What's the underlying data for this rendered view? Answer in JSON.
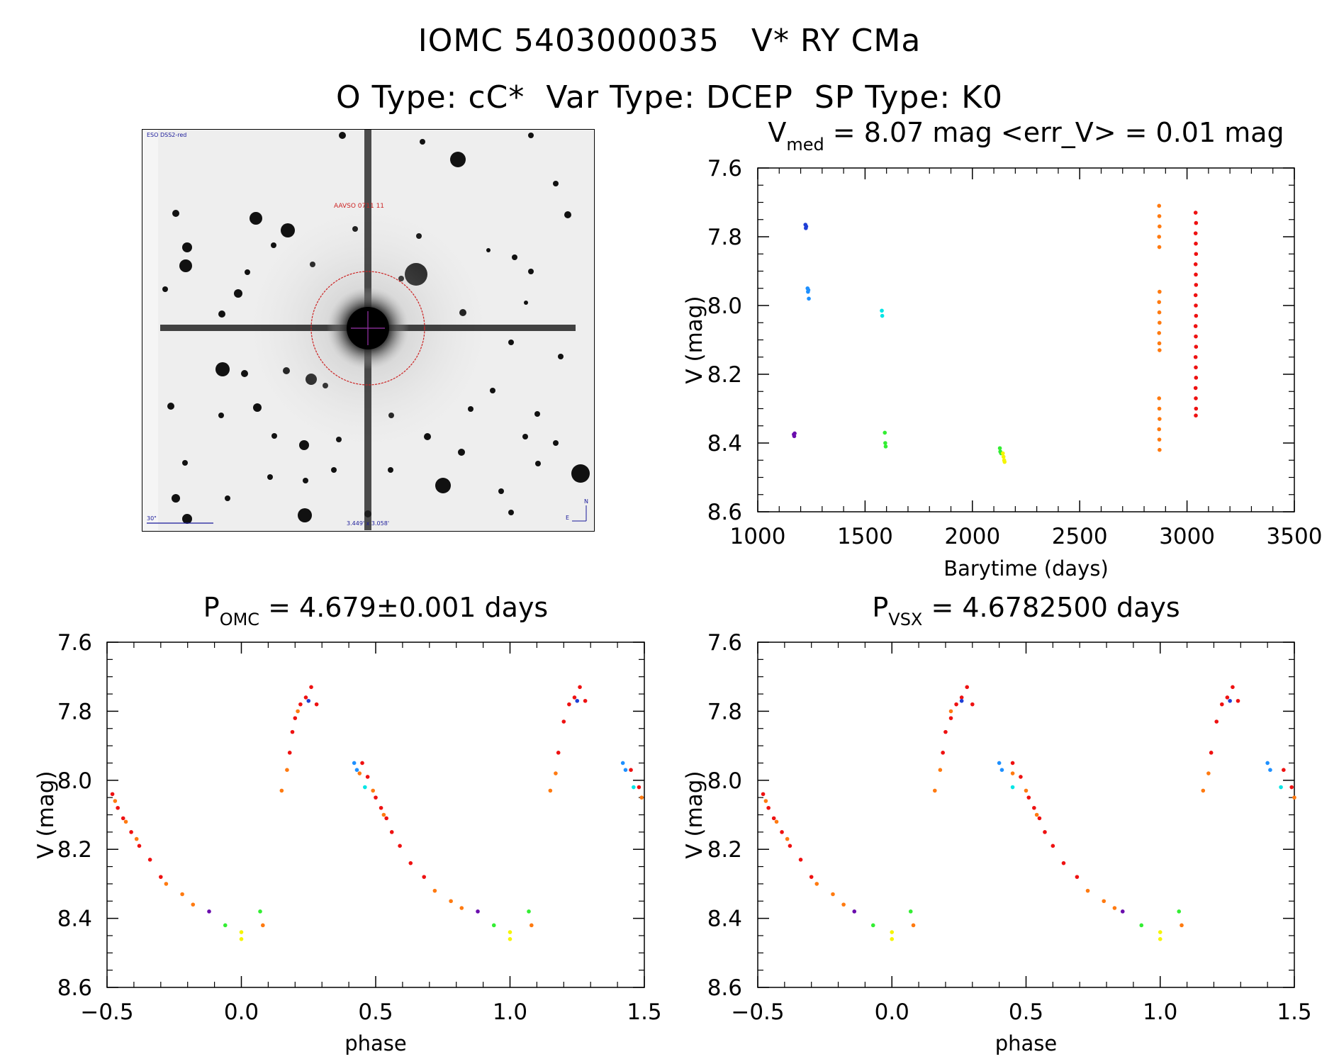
{
  "header": {
    "line1_left": "IOMC 5403000035",
    "line1_right": "V* RY CMa",
    "line2": {
      "o_type": "O Type: cC*",
      "var_type": "Var Type: DCEP",
      "sp_type": "SP Type: K0"
    }
  },
  "finder_chart": {
    "survey_label": "ESO DSS2-red",
    "target_label": "AAVSO 0711  11",
    "scale_label": "30\"",
    "field_label": "3.449' x 3.058'",
    "north_label": "N",
    "east_label": "E",
    "colors": {
      "circle": "#cc2222",
      "crosshair": "#9933aa",
      "text_blue": "#1a1a9a",
      "text_red": "#cc2222"
    }
  },
  "palette": {
    "purple": "#6a0dad",
    "blue": "#1f3fd6",
    "sky": "#1e90ff",
    "cyan": "#00e5e5",
    "green": "#33ee33",
    "yellow": "#f5f500",
    "orange": "#ff7a10",
    "red": "#ee1111"
  },
  "chart_data": [
    {
      "id": "lightcurve",
      "type": "scatter",
      "title_main": "V",
      "title_sub": "med",
      "title_rest": "= 8.07 mag <err_V> = 0.01 mag",
      "xlabel": "Barytime (days)",
      "ylabel": "V (mag)",
      "xlim": [
        1000,
        3500
      ],
      "ylim": [
        8.6,
        7.6
      ],
      "y_inverted": true,
      "xticks": [
        1000,
        1500,
        2000,
        2500,
        3000,
        3500
      ],
      "yticks": [
        7.6,
        7.8,
        8.0,
        8.2,
        8.4,
        8.6
      ],
      "ytick_labels": [
        "7.6",
        "7.8",
        "8.0",
        "8.2",
        "8.4",
        "8.6"
      ],
      "grid": false,
      "series": [
        {
          "color": "purple",
          "points": [
            [
              1168,
              8.375
            ],
            [
              1170,
              8.38
            ],
            [
              1172,
              8.372
            ]
          ]
        },
        {
          "color": "blue",
          "points": [
            [
              1222,
              7.765
            ],
            [
              1224,
              7.775
            ],
            [
              1226,
              7.77
            ]
          ]
        },
        {
          "color": "sky",
          "points": [
            [
              1232,
              7.95
            ],
            [
              1234,
              7.96
            ],
            [
              1236,
              7.955
            ],
            [
              1238,
              7.98
            ]
          ]
        },
        {
          "color": "cyan",
          "points": [
            [
              1578,
              8.015
            ],
            [
              1580,
              8.03
            ]
          ]
        },
        {
          "color": "green",
          "points": [
            [
              1592,
              8.37
            ],
            [
              1594,
              8.4
            ],
            [
              1596,
              8.41
            ],
            [
              2128,
              8.415
            ],
            [
              2130,
              8.425
            ],
            [
              2134,
              8.43
            ]
          ]
        },
        {
          "color": "yellow",
          "points": [
            [
              2142,
              8.43
            ],
            [
              2145,
              8.44
            ],
            [
              2148,
              8.45
            ],
            [
              2150,
              8.455
            ]
          ]
        },
        {
          "color": "orange",
          "points": [
            [
              2870,
              7.71
            ],
            [
              2871,
              7.74
            ],
            [
              2872,
              7.77
            ],
            [
              2870,
              7.8
            ],
            [
              2871,
              7.83
            ],
            [
              2872,
              7.96
            ],
            [
              2870,
              7.99
            ],
            [
              2871,
              8.02
            ],
            [
              2872,
              8.05
            ],
            [
              2870,
              8.08
            ],
            [
              2871,
              8.11
            ],
            [
              2872,
              8.13
            ],
            [
              2870,
              8.27
            ],
            [
              2871,
              8.3
            ],
            [
              2872,
              8.33
            ],
            [
              2870,
              8.36
            ],
            [
              2871,
              8.39
            ],
            [
              2872,
              8.42
            ]
          ]
        },
        {
          "color": "red",
          "points": [
            [
              3040,
              7.73
            ],
            [
              3042,
              7.76
            ],
            [
              3040,
              7.79
            ],
            [
              3041,
              7.82
            ],
            [
              3042,
              7.85
            ],
            [
              3040,
              7.88
            ],
            [
              3041,
              7.91
            ],
            [
              3042,
              7.94
            ],
            [
              3040,
              7.97
            ],
            [
              3041,
              8.0
            ],
            [
              3042,
              8.03
            ],
            [
              3040,
              8.06
            ],
            [
              3041,
              8.09
            ],
            [
              3042,
              8.12
            ],
            [
              3040,
              8.15
            ],
            [
              3041,
              8.18
            ],
            [
              3042,
              8.21
            ],
            [
              3040,
              8.24
            ],
            [
              3041,
              8.27
            ],
            [
              3042,
              8.3
            ],
            [
              3041,
              8.32
            ]
          ]
        }
      ]
    },
    {
      "id": "phase_omc",
      "type": "scatter",
      "title_main": "P",
      "title_sub": "OMC",
      "title_rest": "= 4.679±0.001 days",
      "xlabel": "phase",
      "ylabel": "V (mag)",
      "xlim": [
        -0.5,
        1.5
      ],
      "ylim": [
        8.6,
        7.6
      ],
      "y_inverted": true,
      "xticks": [
        -0.5,
        0.0,
        0.5,
        1.0,
        1.5
      ],
      "xtick_labels": [
        "−0.5",
        "0.0",
        "0.5",
        "1.0",
        "1.5"
      ],
      "yticks": [
        7.6,
        7.8,
        8.0,
        8.2,
        8.4,
        8.6
      ],
      "ytick_labels": [
        "7.6",
        "7.8",
        "8.0",
        "8.2",
        "8.4",
        "8.6"
      ],
      "grid": false,
      "series": [
        {
          "color": "red",
          "points": [
            [
              -0.48,
              8.04
            ],
            [
              -0.46,
              8.08
            ],
            [
              -0.44,
              8.11
            ],
            [
              -0.41,
              8.15
            ],
            [
              -0.38,
              8.19
            ],
            [
              -0.34,
              8.23
            ],
            [
              -0.3,
              8.28
            ],
            [
              0.18,
              7.92
            ],
            [
              0.19,
              7.86
            ],
            [
              0.2,
              7.82
            ],
            [
              0.22,
              7.78
            ],
            [
              0.24,
              7.76
            ],
            [
              0.26,
              7.73
            ],
            [
              0.28,
              7.78
            ],
            [
              0.45,
              7.95
            ],
            [
              0.47,
              7.99
            ],
            [
              0.5,
              8.05
            ],
            [
              0.52,
              8.08
            ],
            [
              0.54,
              8.11
            ],
            [
              0.56,
              8.15
            ],
            [
              0.59,
              8.19
            ],
            [
              0.63,
              8.24
            ],
            [
              0.68,
              8.28
            ],
            [
              1.18,
              7.92
            ],
            [
              1.2,
              7.83
            ],
            [
              1.22,
              7.78
            ],
            [
              1.24,
              7.76
            ],
            [
              1.26,
              7.73
            ],
            [
              1.28,
              7.77
            ],
            [
              1.45,
              7.97
            ],
            [
              1.48,
              8.02
            ]
          ]
        },
        {
          "color": "orange",
          "points": [
            [
              -0.47,
              8.06
            ],
            [
              -0.43,
              8.12
            ],
            [
              -0.39,
              8.17
            ],
            [
              -0.28,
              8.3
            ],
            [
              -0.22,
              8.33
            ],
            [
              -0.18,
              8.36
            ],
            [
              0.08,
              8.42
            ],
            [
              0.15,
              8.03
            ],
            [
              0.17,
              7.97
            ],
            [
              0.21,
              7.8
            ],
            [
              0.44,
              7.98
            ],
            [
              0.49,
              8.03
            ],
            [
              0.53,
              8.1
            ],
            [
              0.72,
              8.32
            ],
            [
              0.78,
              8.35
            ],
            [
              0.82,
              8.37
            ],
            [
              1.08,
              8.42
            ],
            [
              1.15,
              8.03
            ],
            [
              1.17,
              7.98
            ],
            [
              1.49,
              8.05
            ]
          ]
        },
        {
          "color": "purple",
          "points": [
            [
              -0.12,
              8.38
            ],
            [
              0.88,
              8.38
            ]
          ]
        },
        {
          "color": "blue",
          "points": [
            [
              0.25,
              7.77
            ],
            [
              1.25,
              7.77
            ]
          ]
        },
        {
          "color": "sky",
          "points": [
            [
              0.42,
              7.95
            ],
            [
              0.43,
              7.97
            ],
            [
              1.42,
              7.95
            ],
            [
              1.43,
              7.97
            ]
          ]
        },
        {
          "color": "cyan",
          "points": [
            [
              0.46,
              8.02
            ],
            [
              1.46,
              8.02
            ]
          ]
        },
        {
          "color": "green",
          "points": [
            [
              -0.06,
              8.42
            ],
            [
              0.07,
              8.38
            ],
            [
              0.94,
              8.42
            ],
            [
              1.07,
              8.38
            ]
          ]
        },
        {
          "color": "yellow",
          "points": [
            [
              0.0,
              8.44
            ],
            [
              0.0,
              8.46
            ],
            [
              1.0,
              8.44
            ],
            [
              1.0,
              8.46
            ]
          ]
        }
      ]
    },
    {
      "id": "phase_vsx",
      "type": "scatter",
      "title_main": "P",
      "title_sub": "VSX",
      "title_rest": "= 4.6782500 days",
      "xlabel": "phase",
      "ylabel": "V (mag)",
      "xlim": [
        -0.5,
        1.5
      ],
      "ylim": [
        8.6,
        7.6
      ],
      "y_inverted": true,
      "xticks": [
        -0.5,
        0.0,
        0.5,
        1.0,
        1.5
      ],
      "xtick_labels": [
        "−0.5",
        "0.0",
        "0.5",
        "1.0",
        "1.5"
      ],
      "yticks": [
        7.6,
        7.8,
        8.0,
        8.2,
        8.4,
        8.6
      ],
      "ytick_labels": [
        "7.6",
        "7.8",
        "8.0",
        "8.2",
        "8.4",
        "8.6"
      ],
      "grid": false,
      "series": [
        {
          "color": "red",
          "points": [
            [
              -0.48,
              8.04
            ],
            [
              -0.46,
              8.08
            ],
            [
              -0.44,
              8.11
            ],
            [
              -0.41,
              8.15
            ],
            [
              -0.38,
              8.19
            ],
            [
              -0.34,
              8.23
            ],
            [
              -0.3,
              8.28
            ],
            [
              0.19,
              7.92
            ],
            [
              0.2,
              7.86
            ],
            [
              0.22,
              7.82
            ],
            [
              0.24,
              7.78
            ],
            [
              0.26,
              7.76
            ],
            [
              0.28,
              7.73
            ],
            [
              0.3,
              7.78
            ],
            [
              0.45,
              7.95
            ],
            [
              0.48,
              7.99
            ],
            [
              0.51,
              8.05
            ],
            [
              0.53,
              8.08
            ],
            [
              0.55,
              8.11
            ],
            [
              0.57,
              8.15
            ],
            [
              0.6,
              8.19
            ],
            [
              0.64,
              8.24
            ],
            [
              0.69,
              8.28
            ],
            [
              1.19,
              7.92
            ],
            [
              1.21,
              7.83
            ],
            [
              1.23,
              7.78
            ],
            [
              1.25,
              7.76
            ],
            [
              1.27,
              7.73
            ],
            [
              1.29,
              7.77
            ],
            [
              1.46,
              7.97
            ],
            [
              1.49,
              8.02
            ]
          ]
        },
        {
          "color": "orange",
          "points": [
            [
              -0.47,
              8.06
            ],
            [
              -0.43,
              8.12
            ],
            [
              -0.39,
              8.17
            ],
            [
              -0.28,
              8.3
            ],
            [
              -0.22,
              8.33
            ],
            [
              -0.18,
              8.36
            ],
            [
              0.08,
              8.42
            ],
            [
              0.16,
              8.03
            ],
            [
              0.18,
              7.97
            ],
            [
              0.22,
              7.8
            ],
            [
              0.45,
              7.98
            ],
            [
              0.5,
              8.03
            ],
            [
              0.54,
              8.1
            ],
            [
              0.73,
              8.32
            ],
            [
              0.79,
              8.35
            ],
            [
              0.83,
              8.37
            ],
            [
              1.08,
              8.42
            ],
            [
              1.16,
              8.03
            ],
            [
              1.18,
              7.98
            ],
            [
              1.5,
              8.05
            ]
          ]
        },
        {
          "color": "purple",
          "points": [
            [
              -0.14,
              8.38
            ],
            [
              0.86,
              8.38
            ]
          ]
        },
        {
          "color": "blue",
          "points": [
            [
              0.26,
              7.77
            ],
            [
              1.26,
              7.77
            ]
          ]
        },
        {
          "color": "sky",
          "points": [
            [
              0.4,
              7.95
            ],
            [
              0.41,
              7.97
            ],
            [
              1.4,
              7.95
            ],
            [
              1.41,
              7.97
            ]
          ]
        },
        {
          "color": "cyan",
          "points": [
            [
              0.45,
              8.02
            ],
            [
              1.45,
              8.02
            ]
          ]
        },
        {
          "color": "green",
          "points": [
            [
              -0.07,
              8.42
            ],
            [
              0.07,
              8.38
            ],
            [
              0.93,
              8.42
            ],
            [
              1.07,
              8.38
            ]
          ]
        },
        {
          "color": "yellow",
          "points": [
            [
              0.0,
              8.44
            ],
            [
              0.0,
              8.46
            ],
            [
              1.0,
              8.44
            ],
            [
              1.0,
              8.46
            ]
          ]
        }
      ]
    }
  ]
}
